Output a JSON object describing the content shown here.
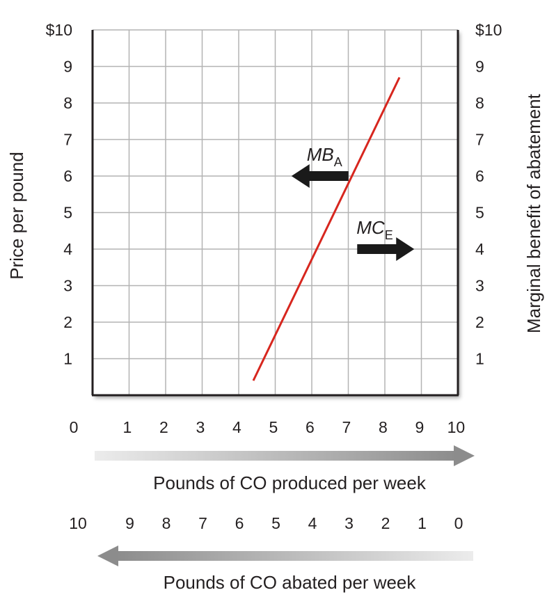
{
  "chart_data": {
    "type": "line",
    "x": [
      4.4,
      8.4
    ],
    "y": [
      0.4,
      8.7
    ],
    "series": [
      {
        "name": "",
        "x": [
          4.4,
          8.4
        ],
        "y": [
          0.4,
          8.7
        ],
        "color": "#d7261e"
      }
    ],
    "xlim": [
      0,
      10
    ],
    "ylim": [
      0,
      10
    ],
    "grid": true,
    "x_ticks": [
      "0",
      "1",
      "2",
      "3",
      "4",
      "5",
      "6",
      "7",
      "8",
      "9",
      "10"
    ],
    "x2_ticks": [
      "10",
      "9",
      "8",
      "7",
      "6",
      "5",
      "4",
      "3",
      "2",
      "1",
      "0"
    ],
    "y_ticks_left": [
      "1",
      "2",
      "3",
      "4",
      "5",
      "6",
      "7",
      "8",
      "9",
      "$10"
    ],
    "y_ticks_right": [
      "1",
      "2",
      "3",
      "4",
      "5",
      "6",
      "7",
      "8",
      "9",
      "$10"
    ],
    "ylabel": "Price per pound",
    "ylabel_right": "Marginal benefit of abatement",
    "xlabel": "Pounds of CO produced per week",
    "xlabel2": "Pounds of CO abated per week",
    "annotations": [
      {
        "main": "MB",
        "sub": "A",
        "arrow": "left",
        "x": 7.5,
        "y": 6.0
      },
      {
        "main": "MC",
        "sub": "E",
        "arrow": "right",
        "x": 6.5,
        "y": 4.0
      }
    ],
    "colors": {
      "line": "#d7261e",
      "grid": "#b3b3b3",
      "axis": "#231f20",
      "arrow": "#1a1a1a"
    }
  }
}
